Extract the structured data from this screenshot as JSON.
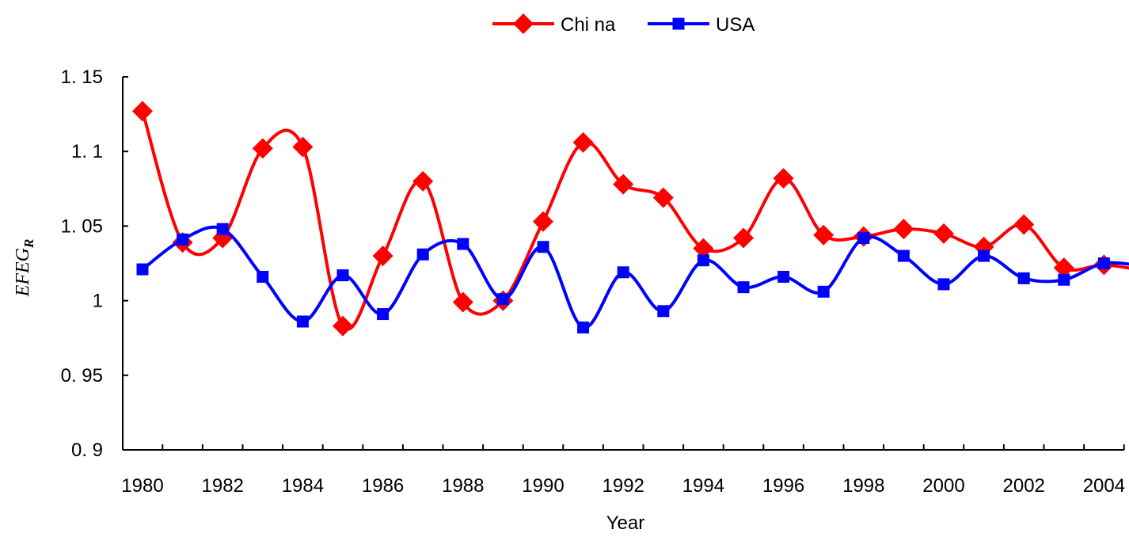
{
  "chart_data": {
    "type": "line",
    "title": "",
    "xlabel": "Year",
    "ylabel_main": "EFEG",
    "ylabel_sub": "R",
    "x": [
      1980,
      1981,
      1982,
      1983,
      1984,
      1985,
      1986,
      1987,
      1988,
      1989,
      1990,
      1991,
      1992,
      1993,
      1994,
      1995,
      1996,
      1997,
      1998,
      1999,
      2000,
      2001,
      2002,
      2003,
      2004,
      2005
    ],
    "xtick_labels": [
      "1980",
      "1982",
      "1984",
      "1986",
      "1988",
      "1990",
      "1992",
      "1994",
      "1996",
      "1998",
      "2000",
      "2002",
      "2004"
    ],
    "ytick_labels": [
      "0. 9",
      "0. 95",
      "1",
      "1. 05",
      "1. 1",
      "1. 15"
    ],
    "ytick_values": [
      0.9,
      0.95,
      1.0,
      1.05,
      1.1,
      1.15
    ],
    "xlim": [
      1980,
      2005
    ],
    "ylim": [
      0.9,
      1.15
    ],
    "grid": false,
    "legend_position": "top-center",
    "series": [
      {
        "name": "Chi na",
        "color": "#ff0000",
        "marker": "diamond",
        "values": [
          1.127,
          1.039,
          1.042,
          1.102,
          1.103,
          0.983,
          1.03,
          1.08,
          0.999,
          1.0,
          1.053,
          1.106,
          1.078,
          1.069,
          1.035,
          1.042,
          1.082,
          1.044,
          1.043,
          1.048,
          1.045,
          1.036,
          1.051,
          1.022,
          1.024,
          1.02
        ]
      },
      {
        "name": "USA",
        "color": "#0000ff",
        "marker": "square",
        "values": [
          1.021,
          1.041,
          1.048,
          1.016,
          0.986,
          1.017,
          0.991,
          1.031,
          1.038,
          1.001,
          1.036,
          0.982,
          1.019,
          0.993,
          1.027,
          1.009,
          1.016,
          1.006,
          1.042,
          1.03,
          1.011,
          1.03,
          1.015,
          1.014,
          1.025,
          1.023
        ]
      }
    ]
  }
}
